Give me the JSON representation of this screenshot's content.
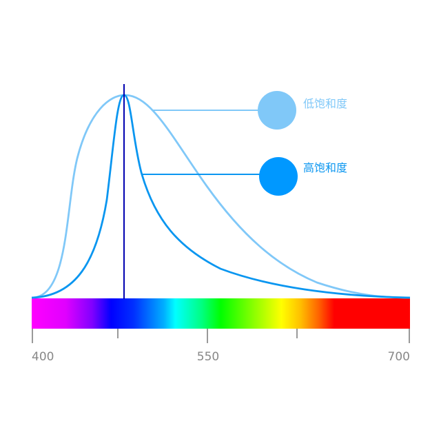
{
  "legend": {
    "low": {
      "label": "低饱和度",
      "color": "#80C8F8"
    },
    "high": {
      "label": "高饱和度",
      "color": "#0A96F0"
    }
  },
  "axis": {
    "ticks": [
      "400",
      "550",
      "700"
    ]
  },
  "colors": {
    "peak_line": "#0000B0",
    "axis": "#777777",
    "tick_text": "#888888"
  }
}
